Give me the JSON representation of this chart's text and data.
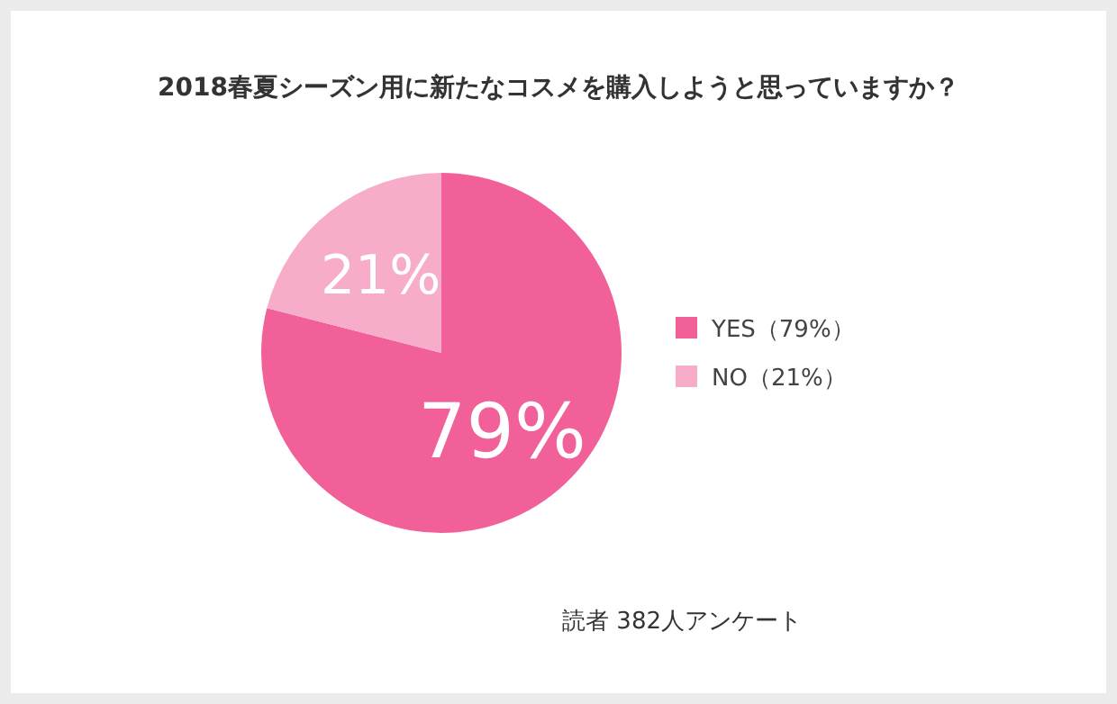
{
  "chart_data": {
    "type": "pie",
    "title": "2018春夏シーズン用に新たなコスメを購入しようと思っていますか？",
    "categories": [
      "YES（79%）",
      "NO（21%）"
    ],
    "values": [
      79,
      21
    ],
    "value_labels": [
      "79%",
      "21%"
    ],
    "colors": [
      "#f2609a",
      "#f7adc9"
    ],
    "legend": "right",
    "annotations": [
      "読者 382人アンケート"
    ]
  }
}
